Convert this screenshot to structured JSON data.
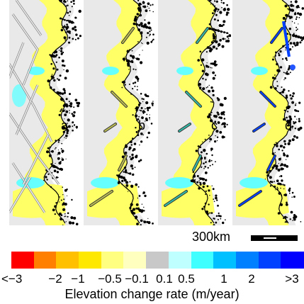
{
  "panels": [
    {
      "label": "a"
    },
    {
      "label": "b"
    },
    {
      "label": "c"
    },
    {
      "label": "d"
    }
  ],
  "scale_bar": {
    "label": "300km"
  },
  "colorbar": {
    "title": "Elevation change rate (m/year)",
    "colors": [
      "#ff0000",
      "#ff8000",
      "#ffc000",
      "#ffe800",
      "#ffff80",
      "#ffffc0",
      "#c8c8c8",
      "#c0ffff",
      "#40ffff",
      "#00c0ff",
      "#0080ff",
      "#0040ff",
      "#0000ff"
    ],
    "tick_labels": [
      "<−3",
      "−2",
      "−1",
      "−0.5",
      "−0.1",
      "0.1",
      "0.5",
      "1",
      "2",
      ">3"
    ]
  },
  "colors": {
    "land": "#e9e9e9",
    "ocean": "#ffffff",
    "ice": "#ffff66",
    "ice_margin": "#ffee40",
    "cyan": "#66ffff",
    "blue": "#0040ff",
    "outline": "#000000"
  }
}
